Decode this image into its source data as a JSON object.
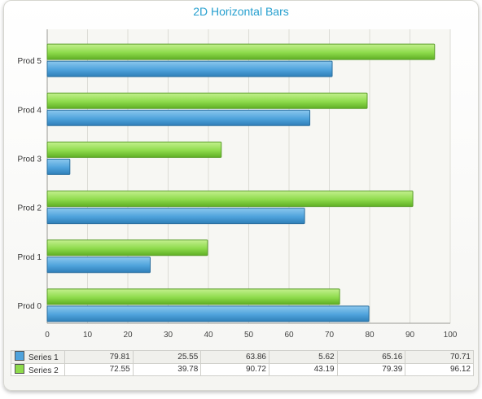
{
  "chart_data": {
    "type": "bar",
    "orientation": "horizontal",
    "title": "2D Horizontal Bars",
    "categories": [
      "Prod 0",
      "Prod 1",
      "Prod 2",
      "Prod 3",
      "Prod 4",
      "Prod 5"
    ],
    "series": [
      {
        "name": "Series 1",
        "color": "#4fa3dc",
        "values": [
          79.81,
          25.55,
          63.86,
          5.62,
          65.16,
          70.71
        ]
      },
      {
        "name": "Series 2",
        "color": "#8edb4c",
        "values": [
          72.55,
          39.78,
          90.72,
          43.19,
          79.39,
          96.12
        ]
      }
    ],
    "xlim": [
      0,
      100
    ],
    "x_ticks": [
      "0",
      "10",
      "20",
      "30",
      "40",
      "50",
      "60",
      "70",
      "80",
      "90",
      "100"
    ],
    "grid": true,
    "legend": "data table below chart"
  },
  "table": {
    "rows": [
      {
        "label": "Series 1",
        "values": [
          "79.81",
          "25.55",
          "63.86",
          "5.62",
          "65.16",
          "70.71"
        ]
      },
      {
        "label": "Series 2",
        "values": [
          "72.55",
          "39.78",
          "90.72",
          "43.19",
          "79.39",
          "96.12"
        ]
      }
    ]
  }
}
